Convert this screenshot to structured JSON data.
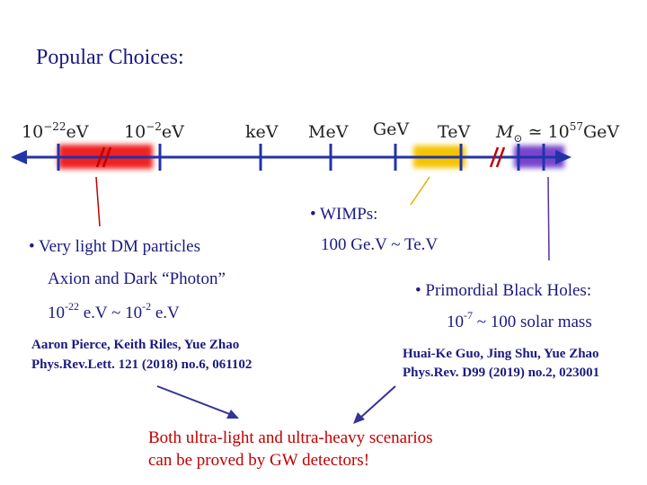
{
  "title": "Popular Choices:",
  "axis": {
    "low": {
      "base": "10",
      "exp": "−22",
      "unit": "eV"
    },
    "mid": {
      "base": "10",
      "exp": "−2",
      "unit": "eV"
    },
    "kev": "keV",
    "mev": "MeV",
    "gev": "GeV",
    "tev": "TeV",
    "high": {
      "symbol": "M",
      "sub": "⊙",
      "approx": " ≃ 10",
      "exp": "57",
      "unit": "GeV"
    }
  },
  "light": {
    "heading": "• Very light DM particles",
    "line1": "Axion and Dark “Photon”",
    "range": {
      "a": "10",
      "a_exp": "-22",
      "b": " e.V ~ 10",
      "b_exp": "-2",
      "c": " e.V"
    },
    "ref1": "Aaron Pierce, Keith Riles, Yue Zhao",
    "ref2": "Phys.Rev.Lett. 121 (2018) no.6, 061102"
  },
  "wimps": {
    "heading": "• WIMPs:",
    "range": "100 Ge.V ~ Te.V"
  },
  "pbh": {
    "heading": "• Primordial Black Holes:",
    "range": {
      "a": "10",
      "a_exp": "-7",
      "b": " ~ 100 solar mass"
    },
    "ref1": "Huai-Ke Guo, Jing Shu, Yue Zhao",
    "ref2": "Phys.Rev. D99 (2019) no.2, 023001"
  },
  "conclusion": {
    "line1": "Both ultra-light and ultra-heavy scenarios",
    "line2": "can be proved by GW detectors!"
  }
}
